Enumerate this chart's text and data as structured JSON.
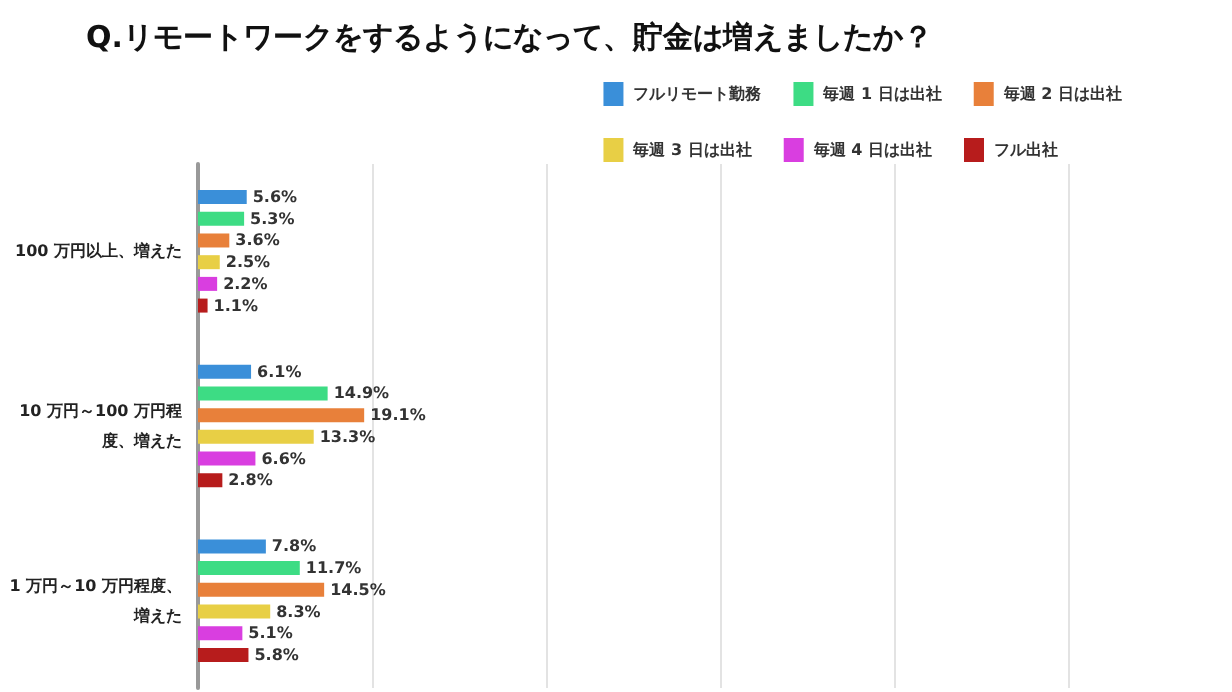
{
  "chart_data": {
    "type": "bar",
    "orientation": "horizontal",
    "title": "Q.リモートワークをするようになって、貯金は増えましたか？",
    "categories": [
      "100 万円以上、増えた",
      "10 万円～100 万円程度、増えた",
      "1 万円～10 万円程度、増えた"
    ],
    "series": [
      {
        "name": "フルリモート勤務",
        "color": "#3a8fd9",
        "values": [
          5.6,
          6.1,
          7.8
        ],
        "value_labels": [
          "5.6%",
          "6.1%",
          "7.8%"
        ]
      },
      {
        "name": "毎週 1 日は出社",
        "color": "#3ddc84",
        "values": [
          5.3,
          14.9,
          11.7
        ],
        "value_labels": [
          "5.3%",
          "14.9%",
          "11.7%"
        ]
      },
      {
        "name": "毎週 2 日は出社",
        "color": "#e8803a",
        "values": [
          3.6,
          19.1,
          14.5
        ],
        "value_labels": [
          "3.6%",
          "19.1%",
          "14.5%"
        ]
      },
      {
        "name": "毎週 3 日は出社",
        "color": "#e8cf45",
        "values": [
          2.5,
          13.3,
          8.3
        ],
        "value_labels": [
          "2.5%",
          "13.3%",
          "8.3%"
        ]
      },
      {
        "name": "毎週 4 日は出社",
        "color": "#d93ee0",
        "values": [
          2.2,
          6.6,
          5.1
        ],
        "value_labels": [
          "2.2%",
          "6.6%",
          "5.1%"
        ]
      },
      {
        "name": "フル出社",
        "color": "#b71c1c",
        "values": [
          1.1,
          2.8,
          5.8
        ],
        "value_labels": [
          "1.1%",
          "2.8%",
          "5.8%"
        ]
      }
    ],
    "xlim": [
      0,
      100
    ],
    "xticks": [
      {
        "value": 0,
        "label": null
      },
      {
        "value": 20,
        "label": null
      },
      {
        "value": 40,
        "label": null
      },
      {
        "value": 60,
        "label": null
      },
      {
        "value": 80,
        "label": null
      },
      {
        "value": 100,
        "label": null
      }
    ],
    "grid": "x",
    "legend": "top right",
    "tick_labels": "y"
  }
}
